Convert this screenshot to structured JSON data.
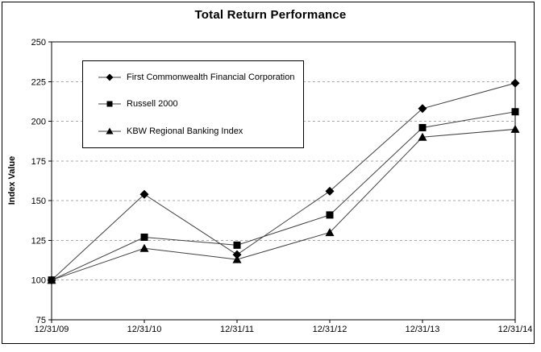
{
  "chart": {
    "title": "Total Return Performance",
    "y_axis_label": "Index Value"
  },
  "chart_data": {
    "type": "line",
    "title": "Total Return Performance",
    "xlabel": "",
    "ylabel": "Index Value",
    "categories": [
      "12/31/09",
      "12/31/10",
      "12/31/11",
      "12/31/12",
      "12/31/13",
      "12/31/14"
    ],
    "series": [
      {
        "name": "First Commonwealth Financial Corporation",
        "marker": "diamond",
        "values": [
          100,
          154,
          116,
          156,
          208,
          224
        ]
      },
      {
        "name": "Russell 2000",
        "marker": "square",
        "values": [
          100,
          127,
          122,
          141,
          196,
          206
        ]
      },
      {
        "name": "KBW Regional Banking Index",
        "marker": "triangle",
        "values": [
          100,
          120,
          113,
          130,
          190,
          195
        ]
      }
    ],
    "ylim": [
      75,
      250
    ],
    "y_ticks": [
      75,
      100,
      125,
      150,
      175,
      200,
      225,
      250
    ],
    "grid": "horizontal-dashed",
    "legend_position": "upper-left-inside",
    "colors": {
      "line": "#404040",
      "marker": "#000000",
      "grid": "#a9a9a9",
      "axis": "#000000",
      "text": "#000000",
      "background": "#ffffff"
    }
  }
}
